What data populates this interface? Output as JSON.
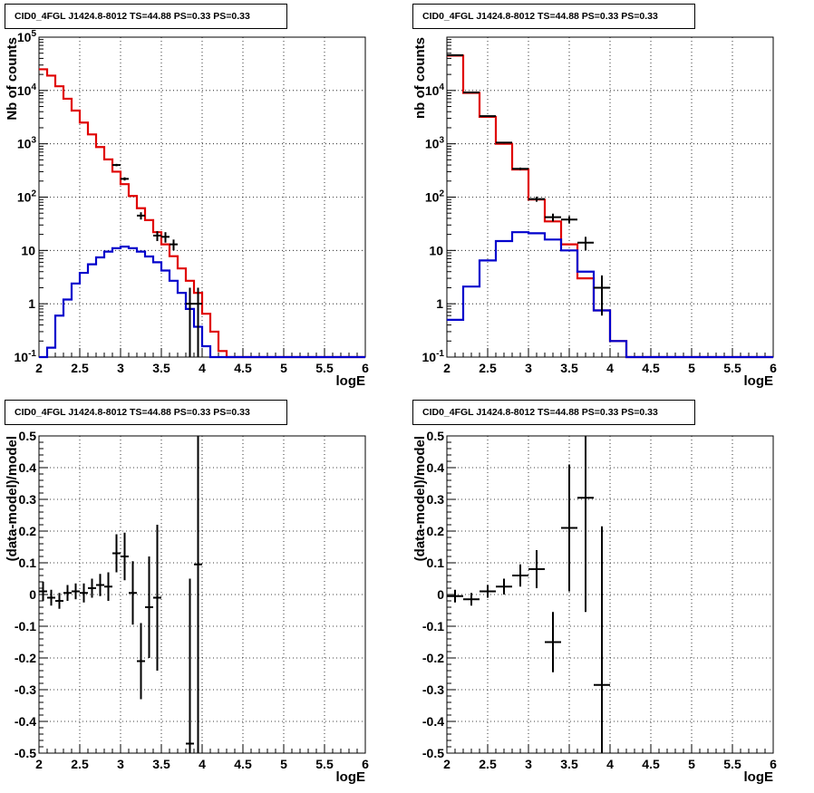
{
  "chart_data": [
    {
      "type": "line",
      "title": "CID0_4FGL J1424.8-8012 TS=44.88 PS=0.33 PS=0.33",
      "xlabel": "logE",
      "ylabel": "Nb of counts",
      "yscale": "log",
      "xlim": [
        2,
        6
      ],
      "ylim": [
        0.1,
        100000
      ],
      "xticks": [
        "2",
        "2.5",
        "3",
        "3.5",
        "4",
        "4.5",
        "5",
        "5.5",
        "6"
      ],
      "yticks": [
        "10^-1",
        "1",
        "10",
        "10^2",
        "10^3",
        "10^4",
        "10^5"
      ],
      "grid": true,
      "bin_edges": [
        2.0,
        2.1,
        2.2,
        2.3,
        2.4,
        2.5,
        2.6,
        2.7,
        2.8,
        2.9,
        3.0,
        3.1,
        3.2,
        3.3,
        3.4,
        3.5,
        3.6,
        3.7,
        3.8,
        3.9,
        4.0,
        4.1,
        4.2,
        4.3,
        4.4,
        4.5,
        4.6,
        4.7,
        4.8,
        4.9,
        5.0,
        5.1,
        5.2,
        5.3,
        5.4,
        5.5,
        5.6,
        5.7,
        5.8,
        5.9,
        6.0
      ],
      "series": [
        {
          "color": "#e00000",
          "style": "step",
          "values": [
            25000,
            19000,
            12000,
            7000,
            4200,
            2500,
            1500,
            870,
            510,
            300,
            175,
            105,
            62,
            37,
            22,
            13,
            7.8,
            4.6,
            2.7,
            1.6,
            0.65,
            0.3,
            0.13,
            0.1,
            0.1,
            0.1,
            0.1,
            0.1,
            0.1,
            0.1,
            0.1,
            0.1,
            0.1,
            0.1,
            0.1,
            0.1,
            0.1,
            0.1,
            0.1,
            0.1
          ]
        },
        {
          "color": "#0000cc",
          "style": "step",
          "values": [
            0.1,
            0.15,
            0.6,
            1.2,
            2.4,
            3.8,
            5.5,
            7.4,
            9.5,
            11,
            11.8,
            11,
            9.5,
            7.7,
            6,
            4.2,
            2.7,
            1.6,
            0.8,
            0.37,
            0.16,
            0.1,
            0.1,
            0.1,
            0.1,
            0.1,
            0.1,
            0.1,
            0.1,
            0.1,
            0.1,
            0.1,
            0.1,
            0.1,
            0.1,
            0.1,
            0.1,
            0.1,
            0.1,
            0.1
          ]
        },
        {
          "color": "#000000",
          "style": "points",
          "x": [
            2.95,
            3.05,
            3.25,
            3.45,
            3.55,
            3.65,
            3.85,
            3.95
          ],
          "y": [
            400,
            220,
            45,
            19,
            18,
            13,
            1,
            1
          ],
          "yerr_lo": [
            20,
            15,
            7,
            4,
            4,
            3,
            0.9,
            0.9
          ],
          "yerr_hi": [
            20,
            15,
            7,
            4,
            4,
            3,
            1,
            1
          ]
        }
      ]
    },
    {
      "type": "line",
      "title": "CID0_4FGL J1424.8-8012 TS=44.88 PS=0.33 PS=0.33",
      "xlabel": "logE",
      "ylabel": "nb of counts",
      "yscale": "log",
      "xlim": [
        2,
        6
      ],
      "ylim": [
        0.1,
        100000
      ],
      "xticks": [
        "2",
        "2.5",
        "3",
        "3.5",
        "4",
        "4.5",
        "5",
        "5.5",
        "6"
      ],
      "yticks": [
        "10^-1",
        "1",
        "10",
        "10^2",
        "10^3",
        "10^4"
      ],
      "grid": true,
      "bin_edges": [
        2.0,
        2.2,
        2.4,
        2.6,
        2.8,
        3.0,
        3.2,
        3.4,
        3.6,
        3.8,
        4.0,
        4.2,
        4.4,
        4.6,
        4.8,
        5.0,
        5.2,
        5.4,
        5.6,
        5.8,
        6.0
      ],
      "series": [
        {
          "color": "#e00000",
          "style": "step",
          "values": [
            45000,
            9000,
            3200,
            1000,
            330,
            90,
            35,
            13,
            3,
            0.75,
            0.2,
            0.1,
            0.1,
            0.1,
            0.1,
            0.1,
            0.1,
            0.1,
            0.1,
            0.1
          ]
        },
        {
          "color": "#0000cc",
          "style": "step",
          "values": [
            0.5,
            2.1,
            6.5,
            15,
            22,
            21,
            16,
            10,
            4,
            0.75,
            0.2,
            0.1,
            0.1,
            0.1,
            0.1,
            0.1,
            0.1,
            0.1,
            0.1,
            0.1
          ]
        },
        {
          "color": "#000000",
          "style": "points",
          "x": [
            2.1,
            2.3,
            2.5,
            2.7,
            2.9,
            3.1,
            3.3,
            3.5,
            3.7,
            3.9
          ],
          "y": [
            46000,
            9200,
            3300,
            1050,
            340,
            92,
            42,
            38,
            14,
            2
          ],
          "yerr_lo": [
            200,
            100,
            60,
            35,
            18,
            10,
            7,
            6,
            4,
            1.4
          ],
          "yerr_hi": [
            200,
            100,
            60,
            35,
            18,
            10,
            7,
            6,
            4,
            1.4
          ]
        }
      ]
    },
    {
      "type": "scatter",
      "title": "CID0_4FGL J1424.8-8012 TS=44.88 PS=0.33 PS=0.33",
      "xlabel": "logE",
      "ylabel": "(data-model)/model",
      "xlim": [
        2,
        6
      ],
      "ylim": [
        -0.5,
        0.5
      ],
      "xticks": [
        "2",
        "2.5",
        "3",
        "3.5",
        "4",
        "4.5",
        "5",
        "5.5",
        "6"
      ],
      "yticks": [
        "-0.5",
        "-0.4",
        "-0.3",
        "-0.2",
        "-0.1",
        "0",
        "0.1",
        "0.2",
        "0.3",
        "0.4",
        "0.5"
      ],
      "grid": true,
      "points": [
        {
          "x": 2.05,
          "y": 0.01,
          "err": 0.03
        },
        {
          "x": 2.15,
          "y": -0.01,
          "err": 0.025
        },
        {
          "x": 2.25,
          "y": -0.02,
          "err": 0.025
        },
        {
          "x": 2.35,
          "y": 0.005,
          "err": 0.025
        },
        {
          "x": 2.45,
          "y": 0.01,
          "err": 0.025
        },
        {
          "x": 2.55,
          "y": 0.005,
          "err": 0.03
        },
        {
          "x": 2.65,
          "y": 0.02,
          "err": 0.03
        },
        {
          "x": 2.75,
          "y": 0.03,
          "err": 0.035
        },
        {
          "x": 2.85,
          "y": 0.025,
          "err": 0.045
        },
        {
          "x": 2.95,
          "y": 0.13,
          "err": 0.06
        },
        {
          "x": 3.05,
          "y": 0.12,
          "err": 0.075
        },
        {
          "x": 3.15,
          "y": 0.005,
          "err": 0.1
        },
        {
          "x": 3.25,
          "y": -0.21,
          "err": 0.12
        },
        {
          "x": 3.35,
          "y": -0.04,
          "err": 0.16
        },
        {
          "x": 3.45,
          "y": -0.01,
          "err": 0.23
        },
        {
          "x": 3.85,
          "y": -0.47,
          "err": 0.52
        },
        {
          "x": 3.95,
          "y": 0.095,
          "err": 0.6
        }
      ]
    },
    {
      "type": "scatter",
      "title": "CID0_4FGL J1424.8-8012 TS=44.88 PS=0.33 PS=0.33",
      "xlabel": "logE",
      "ylabel": "(data-model)/model",
      "xlim": [
        2,
        6
      ],
      "ylim": [
        -0.5,
        0.5
      ],
      "xticks": [
        "2",
        "2.5",
        "3",
        "3.5",
        "4",
        "4.5",
        "5",
        "5.5",
        "6"
      ],
      "yticks": [
        "-0.5",
        "-0.4",
        "-0.3",
        "-0.2",
        "-0.1",
        "0",
        "0.1",
        "0.2",
        "0.3",
        "0.4",
        "0.5"
      ],
      "grid": true,
      "points": [
        {
          "x": 2.1,
          "y": -0.005,
          "err": 0.02
        },
        {
          "x": 2.3,
          "y": -0.015,
          "err": 0.02
        },
        {
          "x": 2.5,
          "y": 0.01,
          "err": 0.02
        },
        {
          "x": 2.7,
          "y": 0.025,
          "err": 0.025
        },
        {
          "x": 2.9,
          "y": 0.06,
          "err": 0.035
        },
        {
          "x": 3.1,
          "y": 0.08,
          "err": 0.06
        },
        {
          "x": 3.3,
          "y": -0.15,
          "err": 0.095
        },
        {
          "x": 3.5,
          "y": 0.21,
          "err": 0.2
        },
        {
          "x": 3.7,
          "y": 0.305,
          "err": 0.36
        },
        {
          "x": 3.9,
          "y": -0.285,
          "err": 0.5
        }
      ]
    }
  ]
}
